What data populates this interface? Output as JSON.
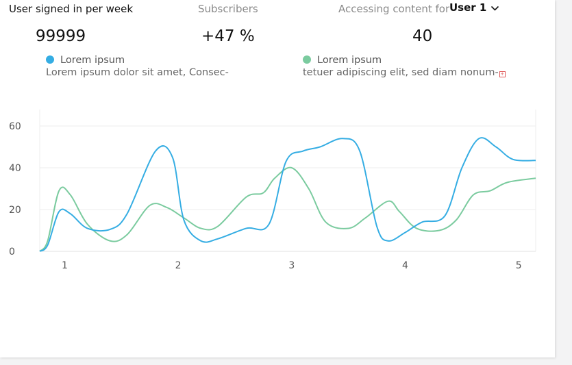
{
  "stats": [
    {
      "label": "User signed in per week",
      "value": "99999"
    },
    {
      "label": "Subscribers",
      "value": "+47 %"
    },
    {
      "label": "Accessing content for",
      "value": "40"
    }
  ],
  "user_select": {
    "value": "User 1"
  },
  "legend": [
    {
      "name": "Lorem ipsum",
      "desc": "Lorem ipsum dolor sit amet, Consec-",
      "color": "#35ade3"
    },
    {
      "name": "Lorem ipsum",
      "desc": "tetuer adipiscing elit, sed diam nonum-",
      "color": "#7bcb9f"
    }
  ],
  "chart_data": {
    "type": "line",
    "xlim": [
      0.78,
      5.15
    ],
    "ylim": [
      0,
      60
    ],
    "y_ticks": [
      "0",
      "20",
      "40",
      "60"
    ],
    "x_ticks": [
      "1",
      "2",
      "3",
      "4",
      "5"
    ],
    "grid": true,
    "series": [
      {
        "color": "#35ade3",
        "points": [
          [
            0.78,
            0
          ],
          [
            0.85,
            3
          ],
          [
            0.95,
            19
          ],
          [
            1.05,
            18
          ],
          [
            1.2,
            11
          ],
          [
            1.4,
            10.5
          ],
          [
            1.55,
            18
          ],
          [
            1.8,
            48
          ],
          [
            1.95,
            45
          ],
          [
            2.05,
            15
          ],
          [
            2.2,
            5
          ],
          [
            2.35,
            6
          ],
          [
            2.6,
            11
          ],
          [
            2.8,
            13
          ],
          [
            2.95,
            43
          ],
          [
            3.1,
            48
          ],
          [
            3.25,
            50
          ],
          [
            3.45,
            54
          ],
          [
            3.6,
            48
          ],
          [
            3.75,
            12
          ],
          [
            3.85,
            5
          ],
          [
            4.0,
            9
          ],
          [
            4.15,
            14
          ],
          [
            4.35,
            17
          ],
          [
            4.5,
            40
          ],
          [
            4.65,
            54
          ],
          [
            4.8,
            50
          ],
          [
            4.95,
            44
          ],
          [
            5.15,
            43.5
          ]
        ]
      },
      {
        "color": "#7bcb9f",
        "points": [
          [
            0.78,
            0
          ],
          [
            0.85,
            5
          ],
          [
            0.95,
            29
          ],
          [
            1.05,
            27
          ],
          [
            1.2,
            13
          ],
          [
            1.4,
            5
          ],
          [
            1.55,
            8
          ],
          [
            1.75,
            22
          ],
          [
            1.9,
            21
          ],
          [
            2.05,
            16
          ],
          [
            2.2,
            11
          ],
          [
            2.35,
            12
          ],
          [
            2.6,
            26
          ],
          [
            2.75,
            28
          ],
          [
            2.85,
            35
          ],
          [
            3.0,
            40
          ],
          [
            3.15,
            30
          ],
          [
            3.3,
            14
          ],
          [
            3.5,
            11
          ],
          [
            3.65,
            16
          ],
          [
            3.85,
            24
          ],
          [
            3.95,
            19
          ],
          [
            4.1,
            11
          ],
          [
            4.3,
            10
          ],
          [
            4.45,
            15
          ],
          [
            4.6,
            27
          ],
          [
            4.75,
            29
          ],
          [
            4.9,
            33
          ],
          [
            5.15,
            35
          ]
        ]
      }
    ]
  }
}
